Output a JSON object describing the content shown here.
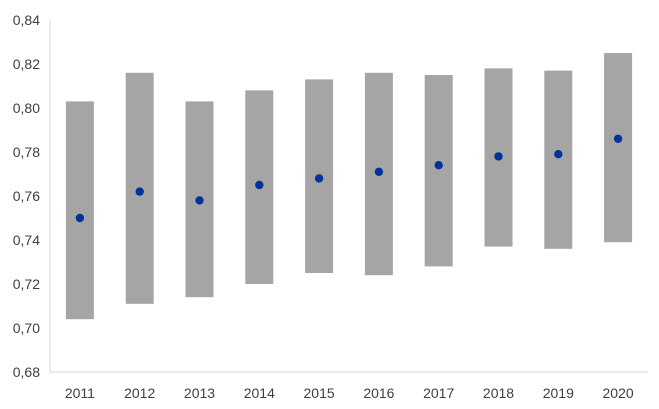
{
  "chart_data": {
    "type": "range-point",
    "title": "",
    "xlabel": "",
    "ylabel": "",
    "categories": [
      "2011",
      "2012",
      "2013",
      "2014",
      "2015",
      "2016",
      "2017",
      "2018",
      "2019",
      "2020"
    ],
    "range_low": [
      0.704,
      0.711,
      0.714,
      0.72,
      0.725,
      0.724,
      0.728,
      0.737,
      0.736,
      0.739
    ],
    "range_high": [
      0.803,
      0.816,
      0.803,
      0.808,
      0.813,
      0.816,
      0.815,
      0.818,
      0.817,
      0.825
    ],
    "values": [
      0.75,
      0.762,
      0.758,
      0.765,
      0.768,
      0.771,
      0.774,
      0.778,
      0.779,
      0.786
    ],
    "ylim": [
      0.68,
      0.84
    ],
    "yticks": [
      0.68,
      0.7,
      0.72,
      0.74,
      0.76,
      0.78,
      0.8,
      0.82,
      0.84
    ],
    "ytick_labels": [
      "0,68",
      "0,70",
      "0,72",
      "0,74",
      "0,76",
      "0,78",
      "0,80",
      "0,82",
      "0,84"
    ],
    "grid": false,
    "legend": "none",
    "colors": {
      "range_bar": "#a5a5a5",
      "point": "#00339a",
      "axis": "#d9d9d9",
      "text": "#404040"
    }
  }
}
